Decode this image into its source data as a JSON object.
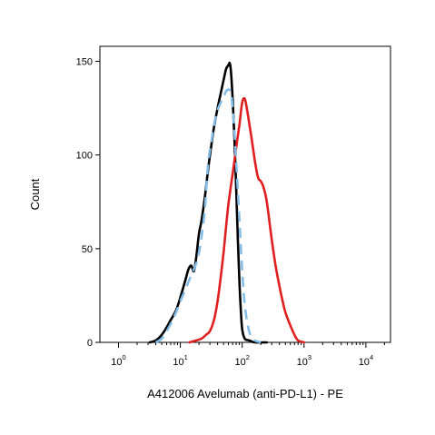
{
  "chart_data": {
    "type": "line",
    "title": "",
    "xlabel": "A412006 Avelumab (anti-PD-L1) - PE",
    "ylabel": "Count",
    "x_scale": "log",
    "xlim": [
      0.5,
      25000
    ],
    "ylim": [
      0,
      158
    ],
    "grid": false,
    "x_ticks": [
      {
        "value": 1,
        "base": "10",
        "exp": "0"
      },
      {
        "value": 10,
        "base": "10",
        "exp": "1"
      },
      {
        "value": 100,
        "base": "10",
        "exp": "2"
      },
      {
        "value": 1000,
        "base": "10",
        "exp": "3"
      },
      {
        "value": 10000,
        "base": "10",
        "exp": "4"
      }
    ],
    "y_ticks": [
      {
        "value": 0,
        "label": "0"
      },
      {
        "value": 50,
        "label": "50"
      },
      {
        "value": 100,
        "label": "100"
      },
      {
        "value": 150,
        "label": "150"
      }
    ],
    "series": [
      {
        "color": "#000000",
        "dash": "solid",
        "x": [
          3.2,
          4,
          5,
          6,
          7,
          8.5,
          10,
          12,
          13.5,
          15,
          16.5,
          18,
          20,
          22,
          25,
          28,
          31,
          35,
          40,
          45,
          50,
          55,
          60,
          63,
          66,
          70,
          75,
          80,
          85,
          90,
          95,
          100,
          110,
          130,
          160,
          250
        ],
        "y": [
          0,
          1,
          4,
          8,
          12,
          17,
          24,
          33,
          39,
          41,
          38,
          45,
          58,
          65,
          78,
          92,
          103,
          115,
          125,
          133,
          140,
          146,
          148,
          149,
          144,
          130,
          108,
          82,
          55,
          33,
          17,
          7,
          2,
          1,
          0,
          0
        ]
      },
      {
        "color": "#84bde5",
        "dash": "dashed",
        "x": [
          4,
          5,
          6,
          7,
          8.5,
          10,
          12,
          15,
          18,
          20,
          22,
          25,
          28,
          32,
          36,
          40,
          45,
          50,
          55,
          60,
          66,
          70,
          75,
          80,
          90,
          100,
          110,
          125,
          140,
          160,
          200
        ],
        "y": [
          0,
          2,
          6,
          10,
          16,
          22,
          28,
          36,
          42,
          48,
          56,
          72,
          95,
          108,
          118,
          124,
          128,
          131,
          134,
          135,
          133,
          125,
          112,
          96,
          66,
          38,
          20,
          8,
          3,
          1,
          0
        ]
      },
      {
        "color": "#e02020",
        "dash": "solid",
        "x": [
          14,
          18,
          22,
          26,
          30,
          35,
          40,
          45,
          50,
          55,
          60,
          70,
          80,
          90,
          100,
          110,
          120,
          140,
          160,
          180,
          200,
          220,
          250,
          300,
          350,
          400,
          450,
          500,
          600,
          700,
          800,
          1000
        ],
        "y": [
          0,
          1,
          2,
          4,
          6,
          12,
          22,
          35,
          48,
          62,
          74,
          90,
          104,
          116,
          128,
          130,
          124,
          110,
          97,
          88,
          86,
          83,
          75,
          55,
          40,
          30,
          22,
          16,
          9,
          4,
          1,
          0
        ]
      }
    ]
  }
}
